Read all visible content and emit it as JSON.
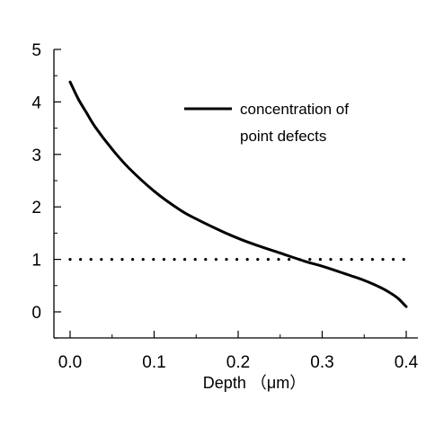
{
  "chart_data": {
    "type": "line",
    "title": "",
    "xlabel": "Depth （μm）",
    "ylabel": "",
    "xlim": [
      -0.01,
      0.405
    ],
    "ylim": [
      -0.5,
      5
    ],
    "x_ticks": [
      0.0,
      0.1,
      0.2,
      0.3,
      0.4
    ],
    "x_tick_labels": [
      "0.0",
      "0.1",
      "0.2",
      "0.3",
      "0.4"
    ],
    "y_ticks": [
      0,
      1,
      2,
      3,
      4,
      5
    ],
    "y_tick_labels": [
      "0",
      "1",
      "2",
      "3",
      "4",
      "5"
    ],
    "grid": false,
    "legend_position": "top-right",
    "series": [
      {
        "name": "concentration of point defects",
        "style": "solid",
        "x": [
          0.0,
          0.01,
          0.02,
          0.03,
          0.05,
          0.07,
          0.1,
          0.13,
          0.15,
          0.18,
          0.2,
          0.22,
          0.25,
          0.28,
          0.3,
          0.33,
          0.35,
          0.37,
          0.38,
          0.39,
          0.4
        ],
        "y": [
          4.38,
          4.05,
          3.78,
          3.52,
          3.1,
          2.74,
          2.3,
          1.95,
          1.77,
          1.54,
          1.4,
          1.28,
          1.12,
          0.96,
          0.87,
          0.71,
          0.6,
          0.46,
          0.37,
          0.26,
          0.1
        ]
      },
      {
        "name": "",
        "style": "dotted",
        "x": [
          0.0,
          0.4
        ],
        "y": [
          1,
          1
        ]
      }
    ],
    "legend": {
      "lines": [
        "concentration of",
        "point defects"
      ]
    }
  },
  "colors": {
    "line": "#000000",
    "background": "#ffffff"
  }
}
